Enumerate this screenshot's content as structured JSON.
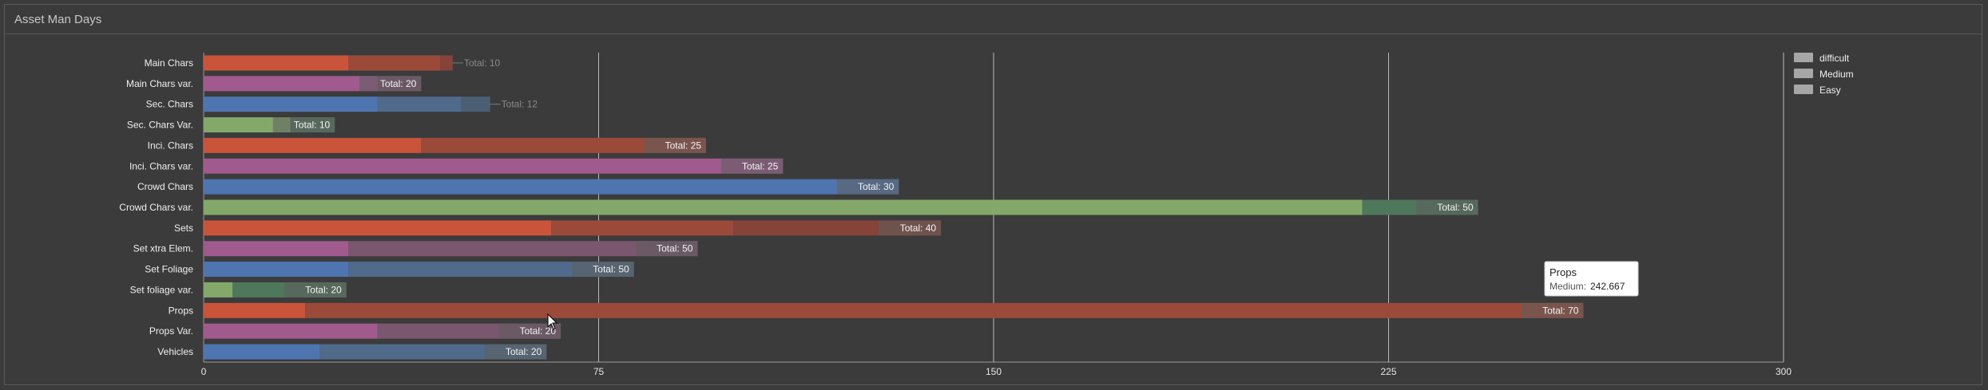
{
  "panel": {
    "title": "Asset Man Days"
  },
  "legend": {
    "items": [
      "difficult",
      "Medium",
      "Easy"
    ],
    "color": "#a6a6a6"
  },
  "tooltip": {
    "title": "Props",
    "label": "Medium:",
    "value": "242.667"
  },
  "chart_data": {
    "type": "bar",
    "orientation": "horizontal",
    "stacked": true,
    "title": "Asset Man Days",
    "categories": [
      "Main Chars",
      "Main Chars var.",
      "Sec. Chars",
      "Sec. Chars Var.",
      "Inci. Chars",
      "Inci. Chars var.",
      "Crowd Chars",
      "Crowd Chars var.",
      "Sets",
      "Set xtra Elem.",
      "Set Foliage",
      "Set foliage var.",
      "Props",
      "Props Var.",
      "Vehicles"
    ],
    "series": [
      {
        "name": "Easy",
        "values": [
          27.5,
          33,
          33,
          16.5,
          41.3,
          110,
          132,
          220,
          66,
          27.5,
          27.5,
          5.5,
          19.3,
          33,
          22
        ]
      },
      {
        "name": "Medium",
        "values": [
          17.4,
          8.3,
          15.9,
          8.4,
          54.1,
          0,
          0,
          22,
          34.6,
          66.3,
          54.2,
          21.6,
          242.7,
          34.8,
          43.1
        ]
      },
      {
        "name": "difficult",
        "values": [
          2.4,
          0,
          5.5,
          0,
          0,
          0,
          0,
          0,
          39.4,
          0,
          0,
          0,
          0,
          0,
          0
        ]
      }
    ],
    "totals": [
      "Total: 10",
      "Total: 20",
      "Total: 12",
      "Total: 10",
      "Total: 25",
      "Total: 25",
      "Total: 30",
      "Total: 50",
      "Total: 40",
      "Total: 50",
      "Total: 50",
      "Total: 20",
      "Total: 70",
      "Total: 20",
      "Total: 20"
    ],
    "totals_value": [
      47.3,
      41.3,
      54.4,
      24.9,
      95.4,
      110,
      132,
      242,
      140,
      93.8,
      81.7,
      27.1,
      262,
      67.8,
      65.1
    ],
    "total_labels_outside": [
      true,
      false,
      true,
      false,
      false,
      false,
      false,
      false,
      false,
      false,
      false,
      false,
      false,
      false,
      false
    ],
    "xticks": [
      "0",
      "75",
      "150",
      "225",
      "300"
    ],
    "xlim": [
      0,
      300
    ],
    "grid": true,
    "legend_position": "top-right",
    "colors": {
      "Main Chars": [
        "#c9543a",
        "#9b4a3a",
        "#864339"
      ],
      "Main Chars var.": [
        "#a05a8e",
        "#7b566f"
      ],
      "Sec. Chars": [
        "#4e75b0",
        "#4f6a8b",
        "#4c5e74"
      ],
      "Sec. Chars Var.": [
        "#84a86a",
        "#4f775b"
      ],
      "Inci. Chars": [
        "#c9543a",
        "#9b4a3a"
      ],
      "Inci. Chars var.": [
        "#a05a8e"
      ],
      "Crowd Chars": [
        "#4e75b0"
      ],
      "Crowd Chars var.": [
        "#84a86a",
        "#4f775b"
      ],
      "Sets": [
        "#c9543a",
        "#9b4a3a",
        "#864339"
      ],
      "Set xtra Elem.": [
        "#a05a8e",
        "#7b566f"
      ],
      "Set Foliage": [
        "#4e75b0",
        "#4f6a8b"
      ],
      "Set foliage var.": [
        "#84a86a",
        "#4f775b"
      ],
      "Props": [
        "#c9543a",
        "#9b4a3a"
      ],
      "Props Var.": [
        "#a05a8e",
        "#7b566f"
      ],
      "Vehicles": [
        "#4e75b0",
        "#4f6a8b"
      ]
    },
    "total_tab_color": "rgba(95,95,95,0.55)"
  }
}
